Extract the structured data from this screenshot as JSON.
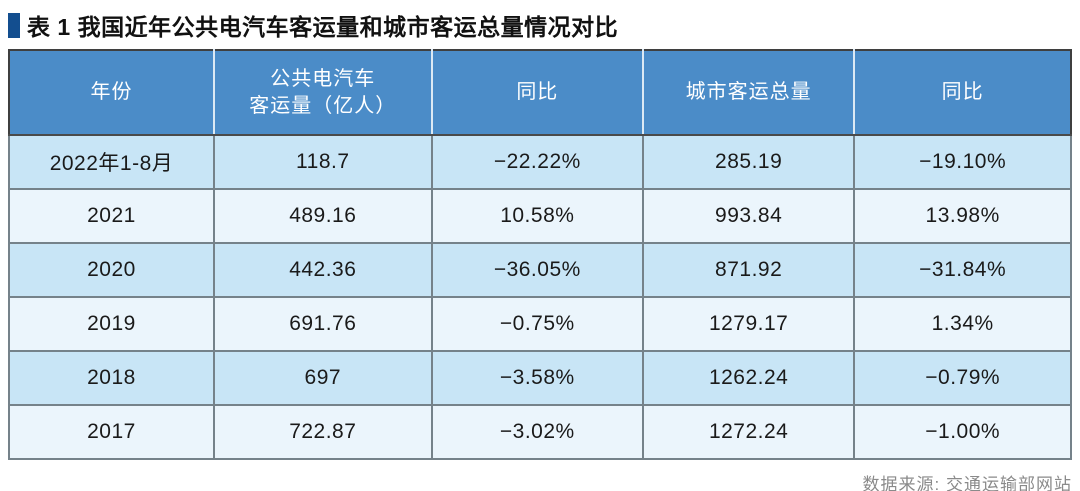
{
  "title": {
    "text": "表 1 我国近年公共电汽车客运量和城市客运总量情况对比"
  },
  "footer": {
    "source": "数据来源: 交通运输部网站"
  },
  "colors": {
    "header_bg": "#4b8cc8",
    "row_light_blue": "#c8e5f6",
    "row_pale": "#ebf5fc",
    "grid_line": "#75828a",
    "outer_border": "#3f3f3f",
    "title_marker": "#134e8f",
    "footer_text": "#8a8a8a"
  },
  "chart_data": {
    "type": "table",
    "title": "表 1 我国近年公共电汽车客运量和城市客运总量情况对比",
    "columns": [
      "年份",
      "公共电汽车\n客运量（亿人）",
      "同比",
      "城市客运总量",
      "同比"
    ],
    "rows": [
      [
        "2022年1-8月",
        "118.7",
        "−22.22%",
        "285.19",
        "−19.10%"
      ],
      [
        "2021",
        "489.16",
        "10.58%",
        "993.84",
        "13.98%"
      ],
      [
        "2020",
        "442.36",
        "−36.05%",
        "871.92",
        "−31.84%"
      ],
      [
        "2019",
        "691.76",
        "−0.75%",
        "1279.17",
        "1.34%"
      ],
      [
        "2018",
        "697",
        "−3.58%",
        "1262.24",
        "−0.79%"
      ],
      [
        "2017",
        "722.87",
        "−3.02%",
        "1272.24",
        "−1.00%"
      ]
    ],
    "source_note": "数据来源: 交通运输部网站"
  }
}
